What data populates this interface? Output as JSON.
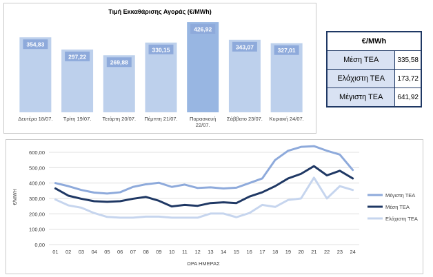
{
  "chart_data": [
    {
      "type": "bar",
      "title": "Τιμή Εκκαθάρισης Αγοράς (€/MWh)",
      "categories": [
        "Δευτέρα 18/07.",
        "Τρίτη 19/07.",
        "Τετάρτη 20/07.",
        "Πέμπτη 21/07.",
        "Παρασκευή 22/07.",
        "Σάββατο 23/07.",
        "Κυριακή 24/07."
      ],
      "values": [
        354.83,
        297.22,
        269.88,
        330.15,
        426.92,
        343.07,
        327.01
      ],
      "value_labels": [
        "354,83",
        "297,22",
        "269,88",
        "330,15",
        "426,92",
        "343,07",
        "327,01"
      ],
      "highlight_index": 4,
      "ylim": [
        0,
        450
      ],
      "colors": {
        "bar": "#bdd0ec",
        "bar_highlight": "#98b6e2",
        "label_bg": "#8eaadb"
      }
    },
    {
      "type": "line",
      "xlabel": "ΩΡΑ ΗΜΕΡΑΣ",
      "ylabel": "€/MWH",
      "ylim": [
        0,
        600
      ],
      "yticks": [
        "0,00",
        "100,00",
        "200,00",
        "300,00",
        "400,00",
        "500,00",
        "600,00"
      ],
      "x": [
        "01",
        "02",
        "03",
        "04",
        "05",
        "06",
        "07",
        "08",
        "09",
        "10",
        "11",
        "12",
        "13",
        "14",
        "15",
        "16",
        "17",
        "18",
        "19",
        "20",
        "21",
        "22",
        "23",
        "24"
      ],
      "legend_position": "right",
      "grid": true,
      "series": [
        {
          "name": "Μέγιστη ΤΕΑ",
          "color": "#8eaadb",
          "width": 3,
          "values": [
            400,
            380,
            355,
            338,
            332,
            340,
            375,
            392,
            402,
            375,
            390,
            368,
            372,
            365,
            370,
            400,
            430,
            550,
            610,
            635,
            640,
            610,
            585,
            485
          ]
        },
        {
          "name": "Μέση ΤΕΑ",
          "color": "#1f3864",
          "width": 3,
          "values": [
            365,
            318,
            298,
            282,
            278,
            282,
            298,
            310,
            285,
            248,
            258,
            252,
            270,
            275,
            270,
            312,
            340,
            380,
            430,
            460,
            510,
            450,
            480,
            430
          ]
        },
        {
          "name": "Ελάχιστη ΤΕΑ",
          "color": "#c6d5ee",
          "width": 3,
          "values": [
            293,
            255,
            240,
            205,
            180,
            175,
            175,
            182,
            182,
            175,
            175,
            175,
            202,
            202,
            178,
            205,
            258,
            245,
            290,
            300,
            435,
            300,
            380,
            355
          ]
        }
      ]
    }
  ],
  "stats_table": {
    "header": "€/MWh",
    "rows": [
      {
        "label": "Μέση ΤΕΑ",
        "value": "335,58"
      },
      {
        "label": "Ελάχιστη ΤΕΑ",
        "value": "173,72"
      },
      {
        "label": "Μέγιστη ΤΕΑ",
        "value": "641,92"
      }
    ]
  }
}
